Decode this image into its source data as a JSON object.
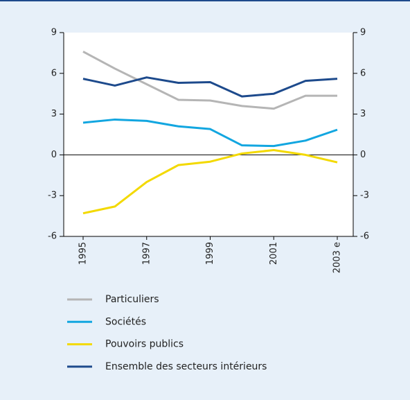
{
  "chart_data": {
    "type": "line",
    "categories": [
      "1995",
      null,
      "1997",
      null,
      "1999",
      null,
      "2001",
      null,
      "2003 e"
    ],
    "series": [
      {
        "name": "Particuliers",
        "color": "#b5b5b5",
        "values": [
          7.6,
          6.35,
          5.2,
          4.05,
          4.0,
          3.6,
          3.4,
          4.35,
          4.35
        ]
      },
      {
        "name": "Sociétés",
        "color": "#12a6e0",
        "values": [
          2.37,
          2.6,
          2.5,
          2.1,
          1.9,
          0.7,
          0.65,
          1.05,
          1.85
        ]
      },
      {
        "name": "Pouvoirs publics",
        "color": "#f3d900",
        "values": [
          -4.3,
          -3.8,
          -2.0,
          -0.75,
          -0.5,
          0.1,
          0.35,
          0.0,
          -0.55
        ]
      },
      {
        "name": "Ensemble des secteurs intérieurs",
        "color": "#1d4a8c",
        "values": [
          5.6,
          5.1,
          5.7,
          5.3,
          5.35,
          4.3,
          4.5,
          5.45,
          5.6
        ]
      }
    ],
    "ylim": [
      -6,
      9
    ],
    "yticks": [
      -6,
      -3,
      0,
      3,
      6,
      9
    ]
  }
}
